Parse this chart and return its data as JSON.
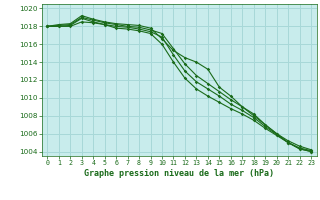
{
  "title": "Graphe pression niveau de la mer (hPa)",
  "plot_bg": "#c8ecec",
  "fig_bg": "#ffffff",
  "grid_color": "#a8d8d8",
  "line_color": "#1a6b1a",
  "xlim": [
    -0.5,
    23.5
  ],
  "ylim": [
    1003.5,
    1020.5
  ],
  "yticks": [
    1004,
    1006,
    1008,
    1010,
    1012,
    1014,
    1016,
    1018,
    1020
  ],
  "xticks": [
    0,
    1,
    2,
    3,
    4,
    5,
    6,
    7,
    8,
    9,
    10,
    11,
    12,
    13,
    14,
    15,
    16,
    17,
    18,
    19,
    20,
    21,
    22,
    23
  ],
  "series": [
    [
      1018.0,
      1018.2,
      1018.3,
      1019.2,
      1018.8,
      1018.5,
      1018.3,
      1018.2,
      1018.1,
      1017.8,
      1016.6,
      1015.3,
      1014.5,
      1014.0,
      1013.2,
      1011.2,
      1010.2,
      1009.0,
      1008.2,
      1007.0,
      1006.0,
      1005.0,
      1004.3,
      1004.0
    ],
    [
      1018.0,
      1018.1,
      1018.2,
      1019.0,
      1018.7,
      1018.4,
      1018.2,
      1018.0,
      1017.9,
      1017.6,
      1017.2,
      1015.5,
      1013.8,
      1012.5,
      1011.6,
      1010.7,
      1009.8,
      1009.0,
      1008.0,
      1007.0,
      1006.0,
      1005.2,
      1004.6,
      1004.2
    ],
    [
      1018.0,
      1018.0,
      1018.1,
      1018.9,
      1018.5,
      1018.2,
      1018.0,
      1017.9,
      1017.7,
      1017.4,
      1016.8,
      1014.8,
      1013.0,
      1011.8,
      1011.0,
      1010.2,
      1009.3,
      1008.6,
      1007.8,
      1006.8,
      1005.9,
      1005.0,
      1004.4,
      1004.1
    ],
    [
      1018.0,
      1018.0,
      1018.0,
      1018.5,
      1018.4,
      1018.2,
      1017.8,
      1017.7,
      1017.5,
      1017.2,
      1016.0,
      1014.0,
      1012.2,
      1011.0,
      1010.2,
      1009.5,
      1008.8,
      1008.2,
      1007.5,
      1006.6,
      1005.8,
      1005.0,
      1004.3,
      1004.0
    ]
  ]
}
